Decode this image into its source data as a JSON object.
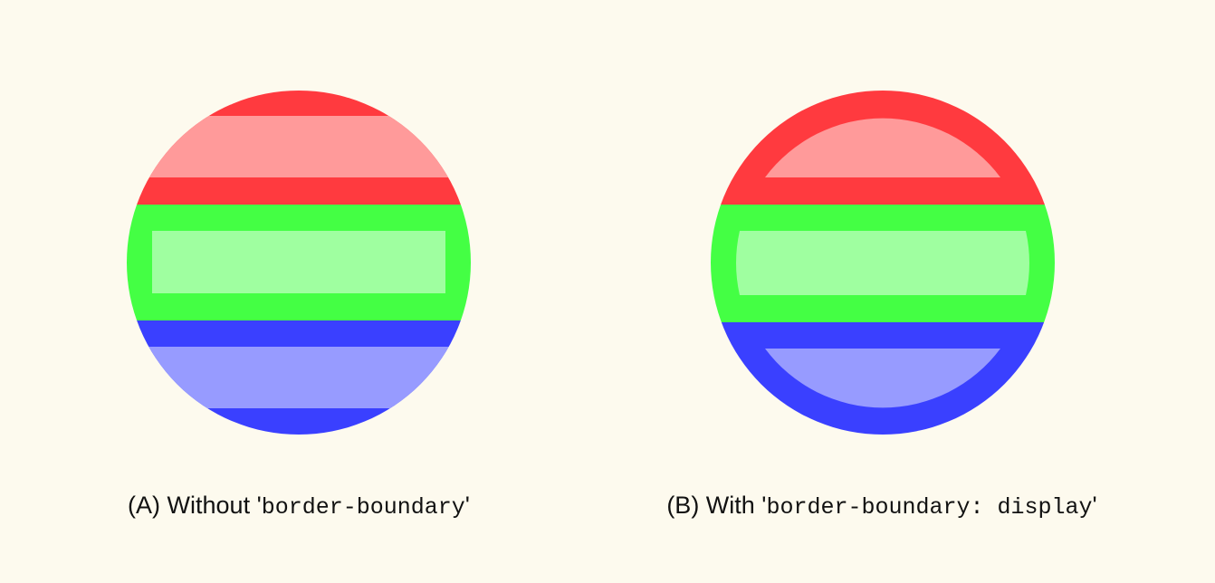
{
  "colors": {
    "background": "#fdfaee",
    "red_border": "#ff3a3f",
    "red_fill": "#ff9a9a",
    "green_border": "#44ff44",
    "green_fill": "#9fffa0",
    "blue_border": "#3a40ff",
    "blue_fill": "#979bff"
  },
  "panels": [
    {
      "id": "A",
      "caption_prefix": "(A) Without '",
      "caption_code": "border-boundary",
      "caption_suffix": "'",
      "border_clips_to_circle": false
    },
    {
      "id": "B",
      "caption_prefix": "(B) With '",
      "caption_code": "border-boundary: display",
      "caption_suffix": "'",
      "border_clips_to_circle": true
    }
  ]
}
